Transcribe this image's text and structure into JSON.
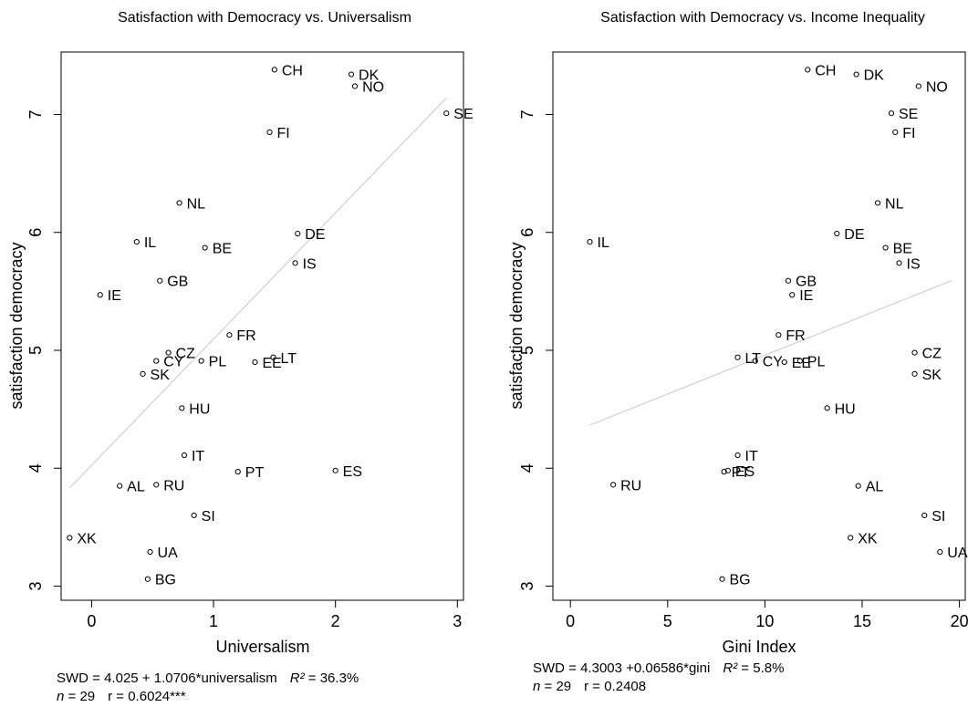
{
  "chart_data": [
    {
      "type": "scatter",
      "title": "Satisfaction with Democracy vs. Universalism",
      "xlabel": "Universalism",
      "ylabel": "satisfaction democracy",
      "xlim": [
        -0.25,
        3.05
      ],
      "ylim": [
        2.88,
        7.53
      ],
      "xticks": [
        0,
        1,
        2,
        3
      ],
      "yticks": [
        3,
        4,
        5,
        6,
        7
      ],
      "grid": false,
      "points": [
        {
          "label": "CH",
          "x": 1.5,
          "y": 7.38
        },
        {
          "label": "DK",
          "x": 2.13,
          "y": 7.34
        },
        {
          "label": "NO",
          "x": 2.16,
          "y": 7.24
        },
        {
          "label": "SE",
          "x": 2.91,
          "y": 7.01
        },
        {
          "label": "FI",
          "x": 1.46,
          "y": 6.85
        },
        {
          "label": "NL",
          "x": 0.72,
          "y": 6.25
        },
        {
          "label": "DE",
          "x": 1.69,
          "y": 5.99
        },
        {
          "label": "IL",
          "x": 0.37,
          "y": 5.92
        },
        {
          "label": "BE",
          "x": 0.93,
          "y": 5.87
        },
        {
          "label": "IS",
          "x": 1.67,
          "y": 5.74
        },
        {
          "label": "GB",
          "x": 0.56,
          "y": 5.59
        },
        {
          "label": "IE",
          "x": 0.07,
          "y": 5.47
        },
        {
          "label": "FR",
          "x": 1.13,
          "y": 5.13
        },
        {
          "label": "CZ",
          "x": 0.63,
          "y": 4.98
        },
        {
          "label": "LT",
          "x": 1.49,
          "y": 4.94
        },
        {
          "label": "CY",
          "x": 0.53,
          "y": 4.91
        },
        {
          "label": "PL",
          "x": 0.9,
          "y": 4.91
        },
        {
          "label": "EE",
          "x": 1.34,
          "y": 4.9
        },
        {
          "label": "SK",
          "x": 0.42,
          "y": 4.8
        },
        {
          "label": "HU",
          "x": 0.74,
          "y": 4.51
        },
        {
          "label": "IT",
          "x": 0.76,
          "y": 4.11
        },
        {
          "label": "PT",
          "x": 1.2,
          "y": 3.97
        },
        {
          "label": "ES",
          "x": 2.0,
          "y": 3.98
        },
        {
          "label": "RU",
          "x": 0.53,
          "y": 3.86
        },
        {
          "label": "AL",
          "x": 0.23,
          "y": 3.85
        },
        {
          "label": "SI",
          "x": 0.84,
          "y": 3.6
        },
        {
          "label": "XK",
          "x": -0.18,
          "y": 3.41
        },
        {
          "label": "UA",
          "x": 0.48,
          "y": 3.29
        },
        {
          "label": "BG",
          "x": 0.46,
          "y": 3.06
        }
      ],
      "fit_line": {
        "intercept": 4.025,
        "slope": 1.0706,
        "x_from": -0.18,
        "x_to": 2.91
      }
    },
    {
      "type": "scatter",
      "title": "Satisfaction with Democracy vs. Income Inequality",
      "xlabel": "Gini Index",
      "ylabel": "satisfaction democracy",
      "xlim": [
        -0.9,
        20.3
      ],
      "ylim": [
        2.88,
        7.53
      ],
      "xticks": [
        0,
        5,
        10,
        15,
        20
      ],
      "yticks": [
        3,
        4,
        5,
        6,
        7
      ],
      "grid": false,
      "points": [
        {
          "label": "CH",
          "x": 12.2,
          "y": 7.38
        },
        {
          "label": "DK",
          "x": 14.7,
          "y": 7.34
        },
        {
          "label": "NO",
          "x": 17.9,
          "y": 7.24
        },
        {
          "label": "SE",
          "x": 16.5,
          "y": 7.01
        },
        {
          "label": "FI",
          "x": 16.7,
          "y": 6.85
        },
        {
          "label": "NL",
          "x": 15.8,
          "y": 6.25
        },
        {
          "label": "DE",
          "x": 13.7,
          "y": 5.99
        },
        {
          "label": "IL",
          "x": 1.0,
          "y": 5.92
        },
        {
          "label": "BE",
          "x": 16.2,
          "y": 5.87
        },
        {
          "label": "IS",
          "x": 16.9,
          "y": 5.74
        },
        {
          "label": "GB",
          "x": 11.2,
          "y": 5.59
        },
        {
          "label": "IE",
          "x": 11.4,
          "y": 5.47
        },
        {
          "label": "FR",
          "x": 10.7,
          "y": 5.13
        },
        {
          "label": "LT",
          "x": 8.6,
          "y": 4.94
        },
        {
          "label": "CY",
          "x": 9.5,
          "y": 4.91
        },
        {
          "label": "EE",
          "x": 11.0,
          "y": 4.9
        },
        {
          "label": "PL",
          "x": 11.8,
          "y": 4.91
        },
        {
          "label": "CZ",
          "x": 17.7,
          "y": 4.98
        },
        {
          "label": "SK",
          "x": 17.7,
          "y": 4.8
        },
        {
          "label": "HU",
          "x": 13.2,
          "y": 4.51
        },
        {
          "label": "IT",
          "x": 8.6,
          "y": 4.11
        },
        {
          "label": "PT",
          "x": 7.9,
          "y": 3.97
        },
        {
          "label": "ES",
          "x": 8.1,
          "y": 3.98
        },
        {
          "label": "RU",
          "x": 2.2,
          "y": 3.86
        },
        {
          "label": "AL",
          "x": 14.8,
          "y": 3.85
        },
        {
          "label": "SI",
          "x": 18.2,
          "y": 3.6
        },
        {
          "label": "XK",
          "x": 14.4,
          "y": 3.41
        },
        {
          "label": "UA",
          "x": 19.0,
          "y": 3.29
        },
        {
          "label": "BG",
          "x": 7.8,
          "y": 3.06
        }
      ],
      "fit_line": {
        "intercept": 4.3003,
        "slope": 0.06586,
        "x_from": 1.0,
        "x_to": 19.6
      }
    }
  ],
  "captions": [
    {
      "eq_left": "SWD = 4.025 + 1.0706*universalism",
      "r2_symbol": "R²",
      "r2_value": " = 36.3%",
      "n_symbol": "n",
      "n_value": " = 29",
      "r_text": "r = 0.6024***"
    },
    {
      "eq_left": "SWD = 4.3003 +0.06586*gini",
      "r2_symbol": "R²",
      "r2_value": " = 5.8%",
      "n_symbol": "n",
      "n_value": " = 29",
      "r_text": "r = 0.2408"
    }
  ],
  "colors": {
    "points": "#000000",
    "fit_line": "#c8c8c8",
    "axis": "#000000"
  }
}
